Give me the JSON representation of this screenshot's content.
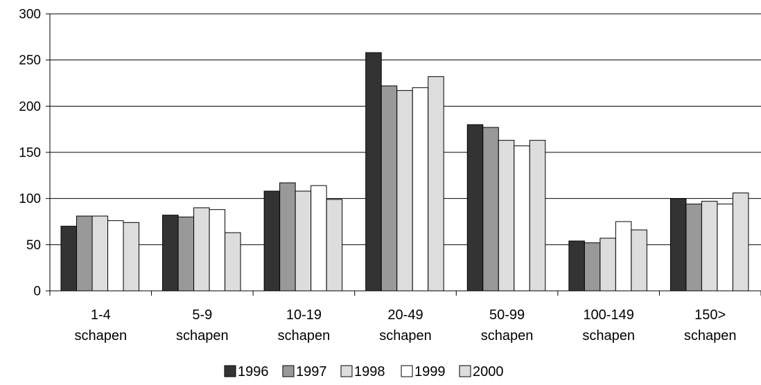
{
  "chart_data": {
    "type": "bar",
    "title": "",
    "xlabel": "",
    "ylabel": "",
    "ylim": [
      0,
      300
    ],
    "yticks": [
      0,
      50,
      100,
      150,
      200,
      250,
      300
    ],
    "grid": true,
    "legend_position": "bottom",
    "categories": [
      [
        "1-4",
        "schapen"
      ],
      [
        "5-9",
        "schapen"
      ],
      [
        "10-19",
        "schapen"
      ],
      [
        "20-49",
        "schapen"
      ],
      [
        "50-99",
        "schapen"
      ],
      [
        "100-149",
        "schapen"
      ],
      [
        "150>",
        "schapen"
      ]
    ],
    "series": [
      {
        "name": "1996",
        "color": "#333333",
        "values": [
          70,
          82,
          108,
          258,
          180,
          54,
          100
        ]
      },
      {
        "name": "1997",
        "color": "#999999",
        "values": [
          81,
          80,
          117,
          222,
          177,
          52,
          94
        ]
      },
      {
        "name": "1998",
        "color": "#dddddd",
        "values": [
          81,
          90,
          108,
          217,
          163,
          57,
          97
        ]
      },
      {
        "name": "1999",
        "color": "#ffffff",
        "values": [
          76,
          88,
          114,
          220,
          157,
          75,
          94
        ]
      },
      {
        "name": "2000",
        "color": "#dddddd",
        "values": [
          74,
          63,
          99,
          232,
          163,
          66,
          106
        ]
      }
    ]
  }
}
